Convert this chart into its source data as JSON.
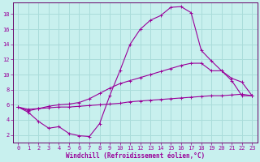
{
  "xlabel": "Windchill (Refroidissement éolien,°C)",
  "bg_color": "#c8f0ee",
  "grid_color": "#aadcda",
  "line_color": "#990099",
  "spine_color": "#660066",
  "xlim": [
    -0.5,
    23.5
  ],
  "ylim": [
    1.0,
    19.5
  ],
  "xticks": [
    0,
    1,
    2,
    3,
    4,
    5,
    6,
    7,
    8,
    9,
    10,
    11,
    12,
    13,
    14,
    15,
    16,
    17,
    18,
    19,
    20,
    21,
    22,
    23
  ],
  "yticks": [
    2,
    4,
    6,
    8,
    10,
    12,
    14,
    16,
    18
  ],
  "line1_x": [
    0,
    1,
    2,
    3,
    4,
    5,
    6,
    7,
    8,
    9,
    10,
    11,
    12,
    13,
    14,
    15,
    16,
    17,
    18,
    19,
    20,
    21,
    22,
    23
  ],
  "line1_y": [
    5.7,
    5.0,
    3.8,
    2.9,
    3.1,
    2.2,
    1.9,
    1.8,
    3.5,
    7.2,
    10.5,
    14.0,
    16.0,
    17.2,
    17.8,
    18.9,
    19.0,
    18.2,
    13.2,
    11.8,
    10.5,
    9.2,
    7.2,
    7.2
  ],
  "line2_x": [
    0,
    1,
    2,
    3,
    4,
    5,
    6,
    7,
    8,
    9,
    10,
    11,
    12,
    13,
    14,
    15,
    16,
    17,
    18,
    19,
    20,
    21,
    22,
    23
  ],
  "line2_y": [
    5.7,
    5.2,
    5.5,
    5.8,
    6.0,
    6.1,
    6.3,
    6.8,
    7.5,
    8.2,
    8.8,
    9.2,
    9.6,
    10.0,
    10.4,
    10.8,
    11.2,
    11.5,
    11.5,
    10.5,
    10.5,
    9.5,
    9.0,
    7.2
  ],
  "line3_x": [
    0,
    1,
    2,
    3,
    4,
    5,
    6,
    7,
    8,
    9,
    10,
    11,
    12,
    13,
    14,
    15,
    16,
    17,
    18,
    19,
    20,
    21,
    22,
    23
  ],
  "line3_y": [
    5.7,
    5.4,
    5.5,
    5.6,
    5.7,
    5.7,
    5.8,
    5.9,
    6.0,
    6.1,
    6.2,
    6.4,
    6.5,
    6.6,
    6.7,
    6.8,
    6.9,
    7.0,
    7.1,
    7.2,
    7.2,
    7.3,
    7.4,
    7.2
  ],
  "tick_fontsize": 5,
  "xlabel_fontsize": 5.5,
  "marker_size": 3,
  "line_width": 0.8
}
